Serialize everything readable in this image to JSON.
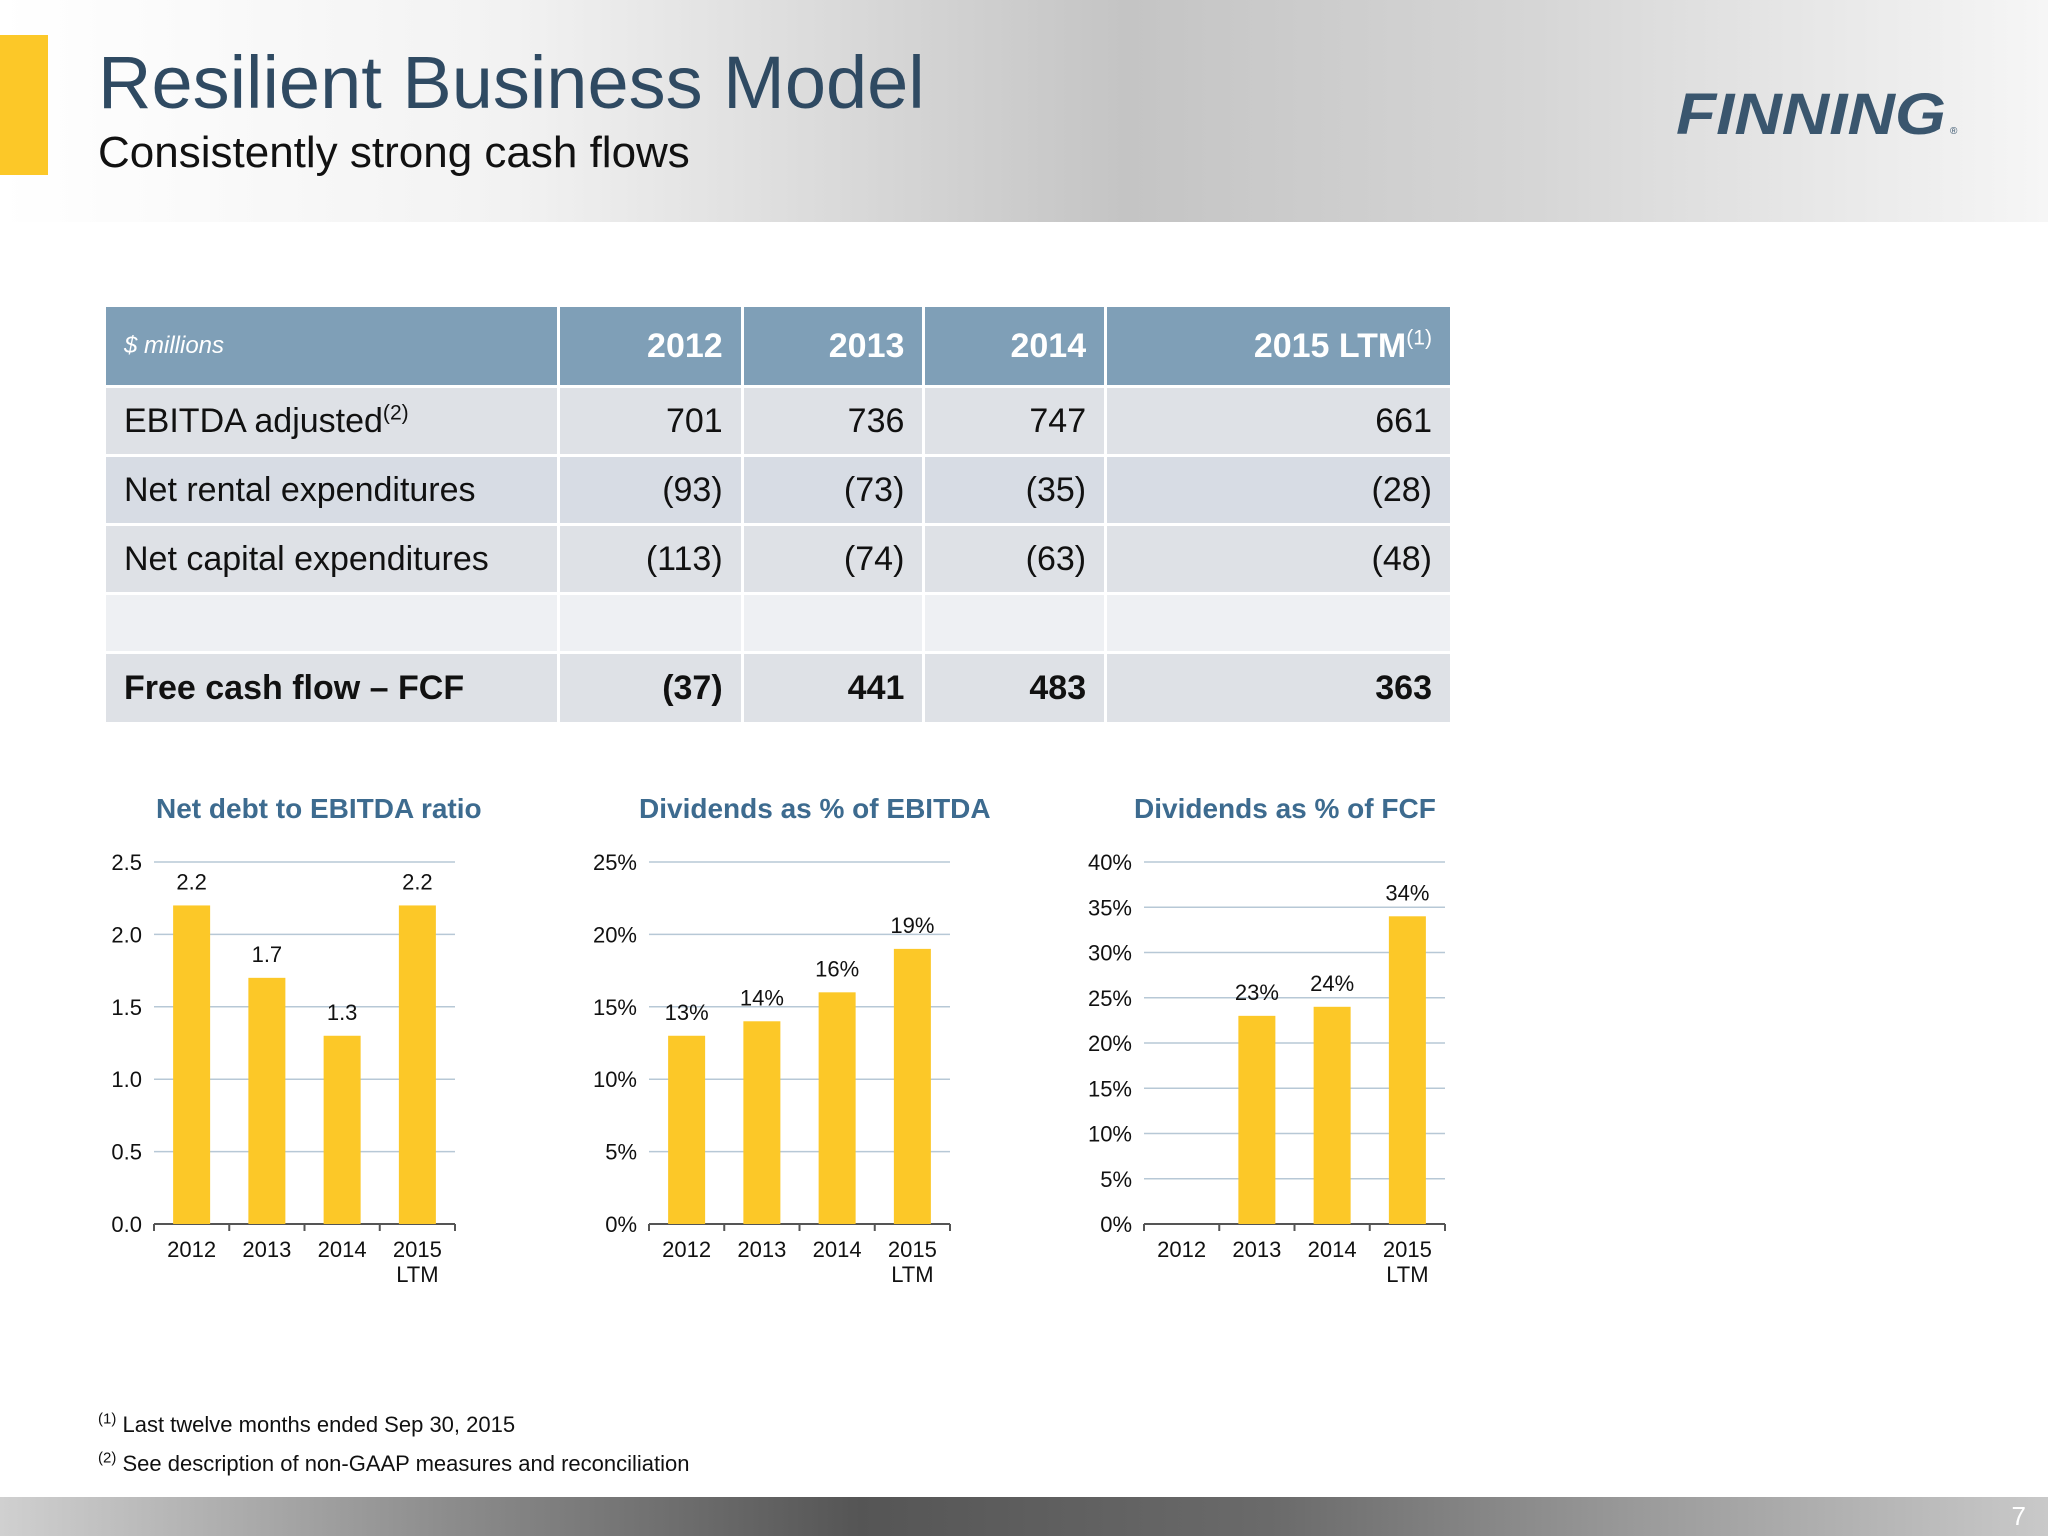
{
  "slide": {
    "title": "Resilient Business Model",
    "subtitle": "Consistently strong cash flows",
    "logo_text": "FINNING",
    "page_number": "7",
    "accent_color": "#fcc828",
    "title_color": "#2f4a62"
  },
  "table": {
    "header_label": "$ millions",
    "columns": [
      "2012",
      "2013",
      "2014",
      "2015 LTM"
    ],
    "last_column_note": "(1)",
    "rows": [
      {
        "label": "EBITDA adjusted",
        "note": "(2)",
        "values": [
          "701",
          "736",
          "747",
          "661"
        ]
      },
      {
        "label": "Net rental expenditures",
        "note": "",
        "values": [
          "(93)",
          "(73)",
          "(35)",
          "(28)"
        ]
      },
      {
        "label": "Net capital expenditures",
        "note": "",
        "values": [
          "(113)",
          "(74)",
          "(63)",
          "(48)"
        ]
      },
      {
        "label": "Free cash flow – FCF",
        "note": "",
        "values": [
          "(37)",
          "441",
          "483",
          "363"
        ]
      }
    ]
  },
  "chart_data": [
    {
      "type": "bar",
      "title": "Net debt to EBITDA ratio",
      "categories": [
        "2012",
        "2013",
        "2014",
        "2015 LTM"
      ],
      "values": [
        2.2,
        1.7,
        1.3,
        2.2
      ],
      "data_labels": [
        "2.2",
        "1.7",
        "1.3",
        "2.2"
      ],
      "ylim": [
        0,
        2.5
      ],
      "yticks": [
        0,
        0.5,
        1.0,
        1.5,
        2.0,
        2.5
      ],
      "ytick_labels": [
        "0.0",
        "0.5",
        "1.0",
        "1.5",
        "2.0",
        "2.5"
      ],
      "grid": true,
      "bar_color": "#fcc828"
    },
    {
      "type": "bar",
      "title": "Dividends as % of EBITDA",
      "categories": [
        "2012",
        "2013",
        "2014",
        "2015 LTM"
      ],
      "values": [
        13,
        14,
        16,
        19
      ],
      "data_labels": [
        "13%",
        "14%",
        "16%",
        "19%"
      ],
      "ylim": [
        0,
        25
      ],
      "yticks": [
        0,
        5,
        10,
        15,
        20,
        25
      ],
      "ytick_labels": [
        "0%",
        "5%",
        "10%",
        "15%",
        "20%",
        "25%"
      ],
      "grid": true,
      "bar_color": "#fcc828"
    },
    {
      "type": "bar",
      "title": "Dividends as % of FCF",
      "categories": [
        "2012",
        "2013",
        "2014",
        "2015 LTM"
      ],
      "values": [
        null,
        23,
        24,
        34
      ],
      "data_labels": [
        "",
        "23%",
        "24%",
        "34%"
      ],
      "ylim": [
        0,
        40
      ],
      "yticks": [
        0,
        5,
        10,
        15,
        20,
        25,
        30,
        35,
        40
      ],
      "ytick_labels": [
        "0%",
        "5%",
        "10%",
        "15%",
        "20%",
        "25%",
        "30%",
        "35%",
        "40%"
      ],
      "grid": true,
      "bar_color": "#fcc828"
    }
  ],
  "footnotes": [
    {
      "marker": "(1)",
      "text": "Last twelve months ended Sep 30, 2015"
    },
    {
      "marker": "(2)",
      "text": "See description of non-GAAP measures and reconciliation"
    }
  ]
}
